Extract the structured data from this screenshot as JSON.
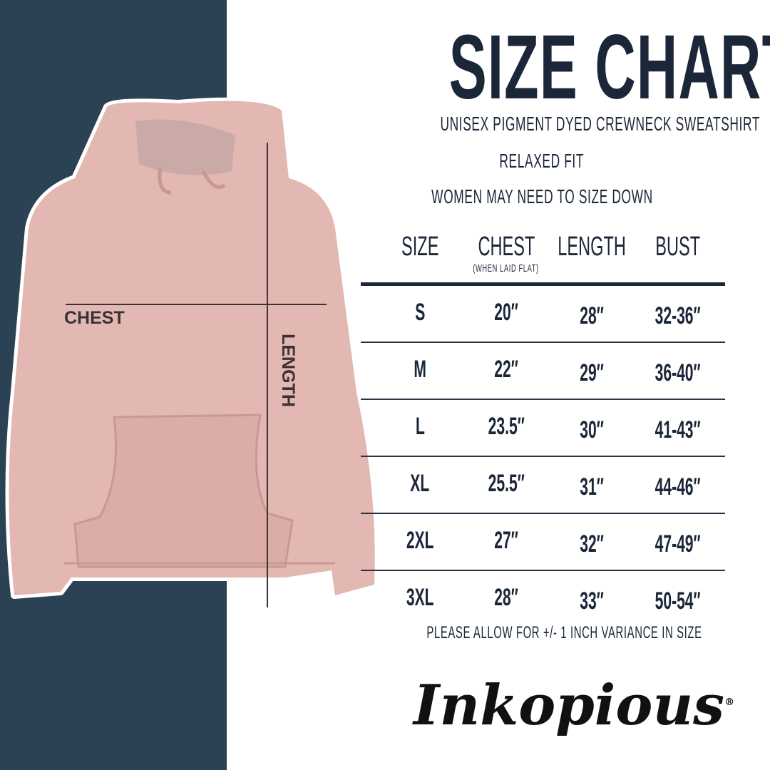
{
  "title": "SIZE CHART",
  "subtitles": [
    "UNISEX PIGMENT DYED CREWNECK SWEATSHIRT",
    "RELAXED FIT",
    "WOMEN MAY NEED TO SIZE DOWN"
  ],
  "image_labels": {
    "chest": "CHEST",
    "length": "LENGTH"
  },
  "table": {
    "headers": [
      "SIZE",
      "CHEST",
      "LENGTH",
      "BUST"
    ],
    "chest_note": "(WHEN LAID FLAT)",
    "rows": [
      [
        "S",
        "20″",
        "28″",
        "32-36″"
      ],
      [
        "M",
        "22″",
        "29″",
        "36-40″"
      ],
      [
        "L",
        "23.5″",
        "30″",
        "41-43″"
      ],
      [
        "XL",
        "25.5″",
        "31″",
        "44-46″"
      ],
      [
        "2XL",
        "27″",
        "32″",
        "47-49″"
      ],
      [
        "3XL",
        "28″",
        "33″",
        "50-54″"
      ]
    ]
  },
  "footnote": "PLEASE ALLOW FOR +/- 1 INCH VARIANCE IN SIZE",
  "logo": "Inkopious",
  "colors": {
    "navy": "#2b4154",
    "text": "#1b2638",
    "hoodie": "#e3b8b2"
  }
}
